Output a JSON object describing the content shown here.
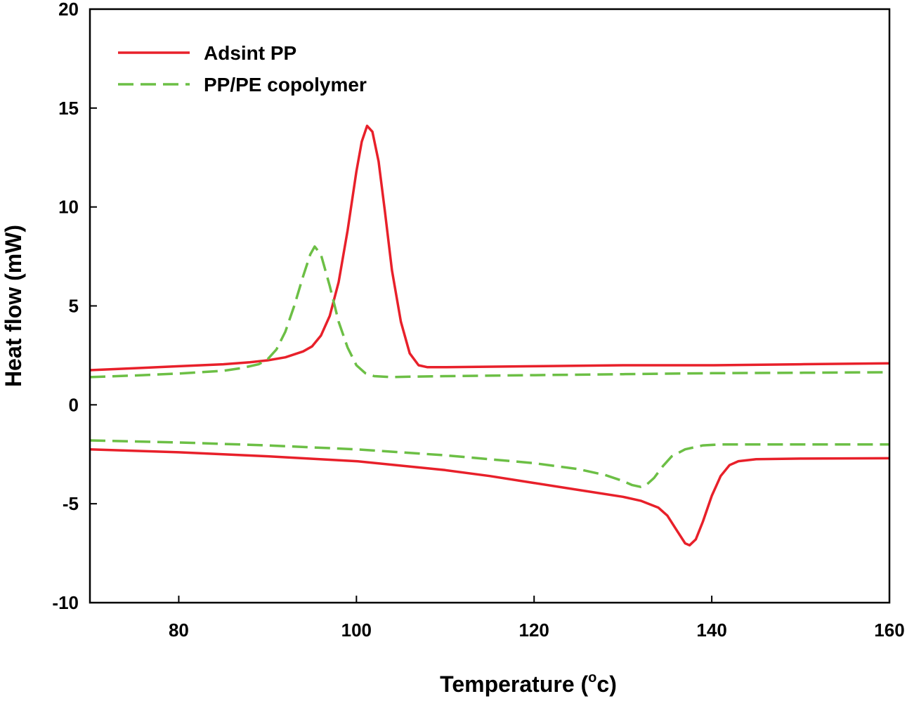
{
  "chart_data": {
    "type": "line",
    "xlabel_main": "Temperature (",
    "xlabel_sup": "o",
    "xlabel_end": "c)",
    "ylabel": "Heat flow (mW)",
    "xlim": [
      70,
      160
    ],
    "ylim": [
      -10,
      20
    ],
    "x_ticks": [
      80,
      100,
      120,
      140,
      160
    ],
    "y_ticks": [
      -10,
      -5,
      0,
      5,
      10,
      15,
      20
    ],
    "grid": false,
    "legend_position": "top-left",
    "series": [
      {
        "name": "Adsint PP",
        "color": "#e8202a",
        "style": "solid",
        "segments": [
          [
            [
              70,
              1.75
            ],
            [
              75,
              1.85
            ],
            [
              80,
              1.95
            ],
            [
              85,
              2.05
            ],
            [
              88,
              2.15
            ],
            [
              90,
              2.25
            ],
            [
              92,
              2.4
            ],
            [
              94,
              2.7
            ],
            [
              95,
              2.95
            ],
            [
              96,
              3.5
            ],
            [
              97,
              4.5
            ],
            [
              98,
              6.2
            ],
            [
              99,
              8.8
            ],
            [
              100,
              11.8
            ],
            [
              100.6,
              13.3
            ],
            [
              101.2,
              14.1
            ],
            [
              101.8,
              13.8
            ],
            [
              102.5,
              12.3
            ],
            [
              103.2,
              9.8
            ],
            [
              104,
              6.8
            ],
            [
              105,
              4.2
            ],
            [
              106,
              2.6
            ],
            [
              107,
              2.0
            ],
            [
              108,
              1.9
            ],
            [
              110,
              1.9
            ],
            [
              120,
              1.95
            ],
            [
              130,
              2.0
            ],
            [
              140,
              2.0
            ],
            [
              150,
              2.05
            ],
            [
              160,
              2.1
            ]
          ],
          [
            [
              70,
              -2.25
            ],
            [
              80,
              -2.4
            ],
            [
              90,
              -2.6
            ],
            [
              100,
              -2.85
            ],
            [
              110,
              -3.3
            ],
            [
              115,
              -3.6
            ],
            [
              120,
              -3.95
            ],
            [
              125,
              -4.3
            ],
            [
              130,
              -4.65
            ],
            [
              132,
              -4.85
            ],
            [
              134,
              -5.2
            ],
            [
              135,
              -5.6
            ],
            [
              136,
              -6.3
            ],
            [
              137,
              -7.0
            ],
            [
              137.5,
              -7.1
            ],
            [
              138.2,
              -6.8
            ],
            [
              139,
              -5.9
            ],
            [
              140,
              -4.6
            ],
            [
              141,
              -3.6
            ],
            [
              142,
              -3.05
            ],
            [
              143,
              -2.85
            ],
            [
              145,
              -2.75
            ],
            [
              150,
              -2.72
            ],
            [
              160,
              -2.7
            ]
          ]
        ]
      },
      {
        "name": "PP/PE copolymer",
        "color": "#6cbf45",
        "style": "dashed",
        "segments": [
          [
            [
              70,
              1.4
            ],
            [
              75,
              1.48
            ],
            [
              80,
              1.58
            ],
            [
              85,
              1.72
            ],
            [
              87,
              1.85
            ],
            [
              89,
              2.05
            ],
            [
              90,
              2.3
            ],
            [
              91,
              2.8
            ],
            [
              92,
              3.7
            ],
            [
              93,
              5.0
            ],
            [
              94,
              6.5
            ],
            [
              94.8,
              7.6
            ],
            [
              95.3,
              8.0
            ],
            [
              96,
              7.6
            ],
            [
              97,
              6.0
            ],
            [
              98,
              4.2
            ],
            [
              99,
              2.9
            ],
            [
              100,
              2.0
            ],
            [
              101,
              1.6
            ],
            [
              102,
              1.45
            ],
            [
              104,
              1.4
            ],
            [
              106,
              1.42
            ],
            [
              110,
              1.45
            ],
            [
              120,
              1.5
            ],
            [
              130,
              1.55
            ],
            [
              140,
              1.6
            ],
            [
              150,
              1.62
            ],
            [
              160,
              1.65
            ]
          ],
          [
            [
              70,
              -1.8
            ],
            [
              80,
              -1.9
            ],
            [
              90,
              -2.05
            ],
            [
              100,
              -2.25
            ],
            [
              110,
              -2.55
            ],
            [
              115,
              -2.75
            ],
            [
              120,
              -2.95
            ],
            [
              125,
              -3.25
            ],
            [
              128,
              -3.55
            ],
            [
              130,
              -3.85
            ],
            [
              131,
              -4.05
            ],
            [
              132,
              -4.15
            ],
            [
              132.5,
              -4.1
            ],
            [
              133.5,
              -3.7
            ],
            [
              134.5,
              -3.1
            ],
            [
              135.5,
              -2.6
            ],
            [
              137,
              -2.25
            ],
            [
              139,
              -2.05
            ],
            [
              141,
              -2.0
            ],
            [
              150,
              -2.0
            ],
            [
              160,
              -2.0
            ]
          ]
        ]
      }
    ]
  }
}
